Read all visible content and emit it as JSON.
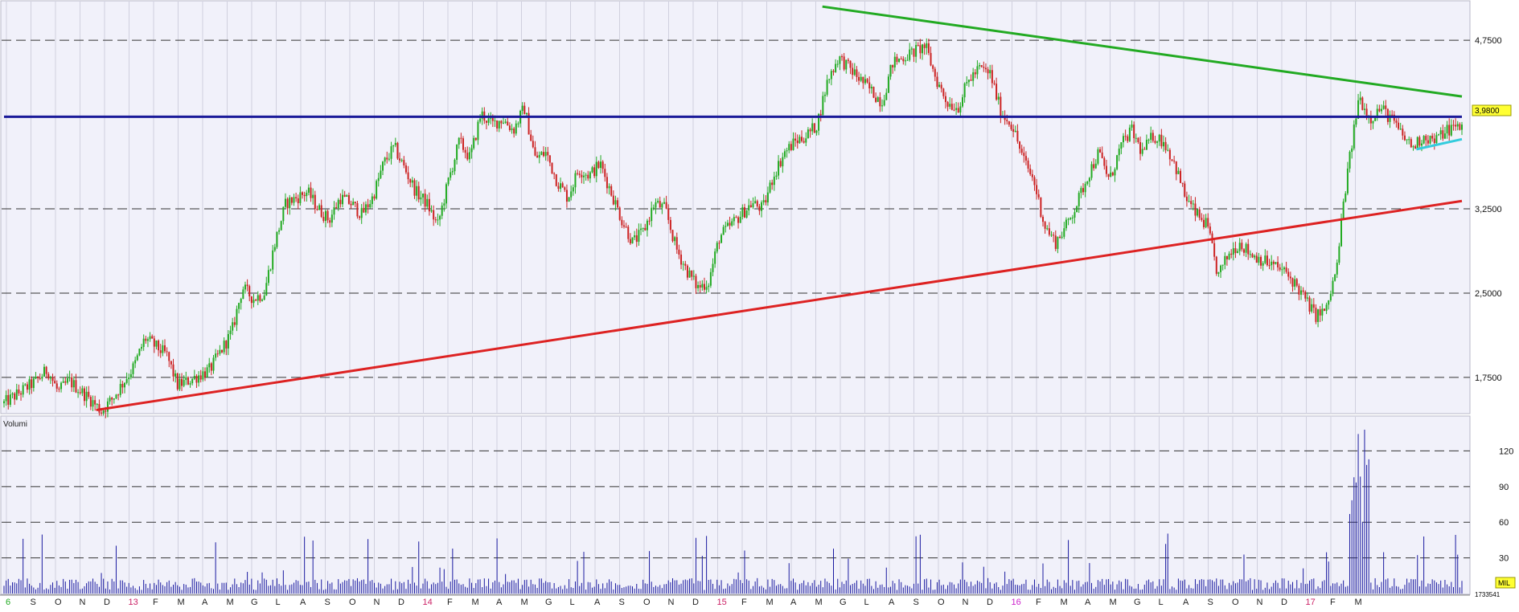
{
  "chart_data": {
    "type": "candlestick",
    "price_axis": {
      "ticks": [
        1.75,
        2.5,
        3.25,
        4.75
      ],
      "tick_labels": [
        "1,7500",
        "2,5000",
        "3,2500",
        "4,7500"
      ],
      "ylim": [
        1.435,
        5.08
      ]
    },
    "volume_axis": {
      "title": "Volumi",
      "ticks": [
        30,
        60,
        90,
        120
      ],
      "tick_labels": [
        "30",
        "60",
        "90",
        "120"
      ],
      "ylim": [
        0,
        148
      ],
      "unit": "MIL"
    },
    "x_labels": [
      "6",
      "S",
      "O",
      "N",
      "D",
      "13",
      "F",
      "M",
      "A",
      "M",
      "G",
      "L",
      "A",
      "S",
      "O",
      "N",
      "D",
      "14",
      "F",
      "M",
      "A",
      "M",
      "G",
      "L",
      "A",
      "S",
      "O",
      "N",
      "D",
      "15",
      "F",
      "M",
      "A",
      "M",
      "G",
      "L",
      "A",
      "S",
      "O",
      "N",
      "D",
      "16",
      "F",
      "M",
      "A",
      "M",
      "G",
      "L",
      "A",
      "S",
      "O",
      "N",
      "D",
      "17",
      "F",
      "M"
    ],
    "year_labels": [
      "6",
      "13",
      "14",
      "15",
      "16",
      "17"
    ],
    "last_price": 3.98,
    "last_price_label": "3,9800",
    "last_volume_label": "1733541",
    "price_path": [
      [
        0,
        1.52
      ],
      [
        3,
        1.72
      ],
      [
        4,
        1.82
      ],
      [
        5,
        1.62
      ],
      [
        6,
        1.72
      ],
      [
        8,
        1.55
      ],
      [
        9,
        1.45
      ],
      [
        10,
        1.56
      ],
      [
        12,
        1.85
      ],
      [
        13,
        2.1
      ],
      [
        15,
        1.95
      ],
      [
        16,
        1.68
      ],
      [
        17,
        1.72
      ],
      [
        19,
        1.82
      ],
      [
        21,
        2.15
      ],
      [
        22,
        2.55
      ],
      [
        23,
        2.45
      ],
      [
        24,
        2.5
      ],
      [
        25,
        2.95
      ],
      [
        26,
        3.3
      ],
      [
        27,
        3.35
      ],
      [
        28,
        3.4
      ],
      [
        29,
        3.25
      ],
      [
        30,
        3.15
      ],
      [
        31,
        3.35
      ],
      [
        32,
        3.3
      ],
      [
        33,
        3.2
      ],
      [
        34,
        3.35
      ],
      [
        35,
        3.65
      ],
      [
        36,
        3.8
      ],
      [
        37,
        3.6
      ],
      [
        38,
        3.4
      ],
      [
        39,
        3.3
      ],
      [
        40,
        3.1
      ],
      [
        41,
        3.5
      ],
      [
        42,
        3.85
      ],
      [
        43,
        3.7
      ],
      [
        44,
        4.1
      ],
      [
        45,
        4.0
      ],
      [
        46,
        4.05
      ],
      [
        47,
        3.95
      ],
      [
        48,
        4.15
      ],
      [
        49,
        3.7
      ],
      [
        50,
        3.75
      ],
      [
        51,
        3.5
      ],
      [
        52,
        3.35
      ],
      [
        53,
        3.6
      ],
      [
        54,
        3.55
      ],
      [
        55,
        3.65
      ],
      [
        56,
        3.4
      ],
      [
        57,
        3.15
      ],
      [
        58,
        2.95
      ],
      [
        59,
        3.05
      ],
      [
        60,
        3.3
      ],
      [
        61,
        3.25
      ],
      [
        62,
        2.9
      ],
      [
        63,
        2.7
      ],
      [
        64,
        2.55
      ],
      [
        65,
        2.6
      ],
      [
        66,
        3.0
      ],
      [
        67,
        3.1
      ],
      [
        68,
        3.2
      ],
      [
        69,
        3.3
      ],
      [
        70,
        3.25
      ],
      [
        71,
        3.55
      ],
      [
        72,
        3.75
      ],
      [
        73,
        3.85
      ],
      [
        74,
        3.9
      ],
      [
        75,
        4.0
      ],
      [
        76,
        4.4
      ],
      [
        77,
        4.6
      ],
      [
        78,
        4.5
      ],
      [
        79,
        4.4
      ],
      [
        80,
        4.3
      ],
      [
        81,
        4.2
      ],
      [
        82,
        4.55
      ],
      [
        83,
        4.6
      ],
      [
        84,
        4.65
      ],
      [
        85,
        4.7
      ],
      [
        86,
        4.4
      ],
      [
        87,
        4.2
      ],
      [
        88,
        4.15
      ],
      [
        89,
        4.4
      ],
      [
        90,
        4.5
      ],
      [
        91,
        4.45
      ],
      [
        92,
        4.1
      ],
      [
        93,
        4.0
      ],
      [
        94,
        3.7
      ],
      [
        95,
        3.5
      ],
      [
        96,
        3.1
      ],
      [
        97,
        2.95
      ],
      [
        98,
        3.1
      ],
      [
        99,
        3.3
      ],
      [
        100,
        3.55
      ],
      [
        101,
        3.75
      ],
      [
        102,
        3.5
      ],
      [
        103,
        3.8
      ],
      [
        104,
        3.95
      ],
      [
        105,
        3.75
      ],
      [
        106,
        3.9
      ],
      [
        107,
        3.85
      ],
      [
        108,
        3.65
      ],
      [
        109,
        3.35
      ],
      [
        110,
        3.2
      ],
      [
        111,
        3.1
      ],
      [
        112,
        2.65
      ],
      [
        113,
        2.85
      ],
      [
        114,
        2.95
      ],
      [
        115,
        2.85
      ],
      [
        116,
        2.8
      ],
      [
        117,
        2.75
      ],
      [
        118,
        2.7
      ],
      [
        119,
        2.6
      ],
      [
        120,
        2.45
      ],
      [
        121,
        2.3
      ],
      [
        122,
        2.35
      ],
      [
        123,
        2.75
      ],
      [
        123.5,
        3.25
      ],
      [
        124,
        3.6
      ],
      [
        125,
        4.25
      ],
      [
        126,
        4.05
      ],
      [
        127,
        4.15
      ],
      [
        128,
        4.05
      ],
      [
        129,
        3.9
      ],
      [
        130,
        3.8
      ],
      [
        131,
        3.9
      ],
      [
        132,
        3.85
      ],
      [
        133,
        3.95
      ],
      [
        134,
        3.98
      ]
    ],
    "trendlines": [
      {
        "color": "#22aa22",
        "points": [
          [
            75.5,
            5.05
          ],
          [
            134.5,
            4.25
          ]
        ]
      },
      {
        "color": "#1a1a99",
        "points": [
          [
            0,
            4.07
          ],
          [
            134.5,
            4.07
          ]
        ]
      },
      {
        "color": "#dd2222",
        "points": [
          [
            8.5,
            1.46
          ],
          [
            134.5,
            3.32
          ]
        ]
      },
      {
        "color": "#33ccdd",
        "points": [
          [
            130.3,
            3.78
          ],
          [
            134.5,
            3.87
          ]
        ]
      }
    ]
  }
}
